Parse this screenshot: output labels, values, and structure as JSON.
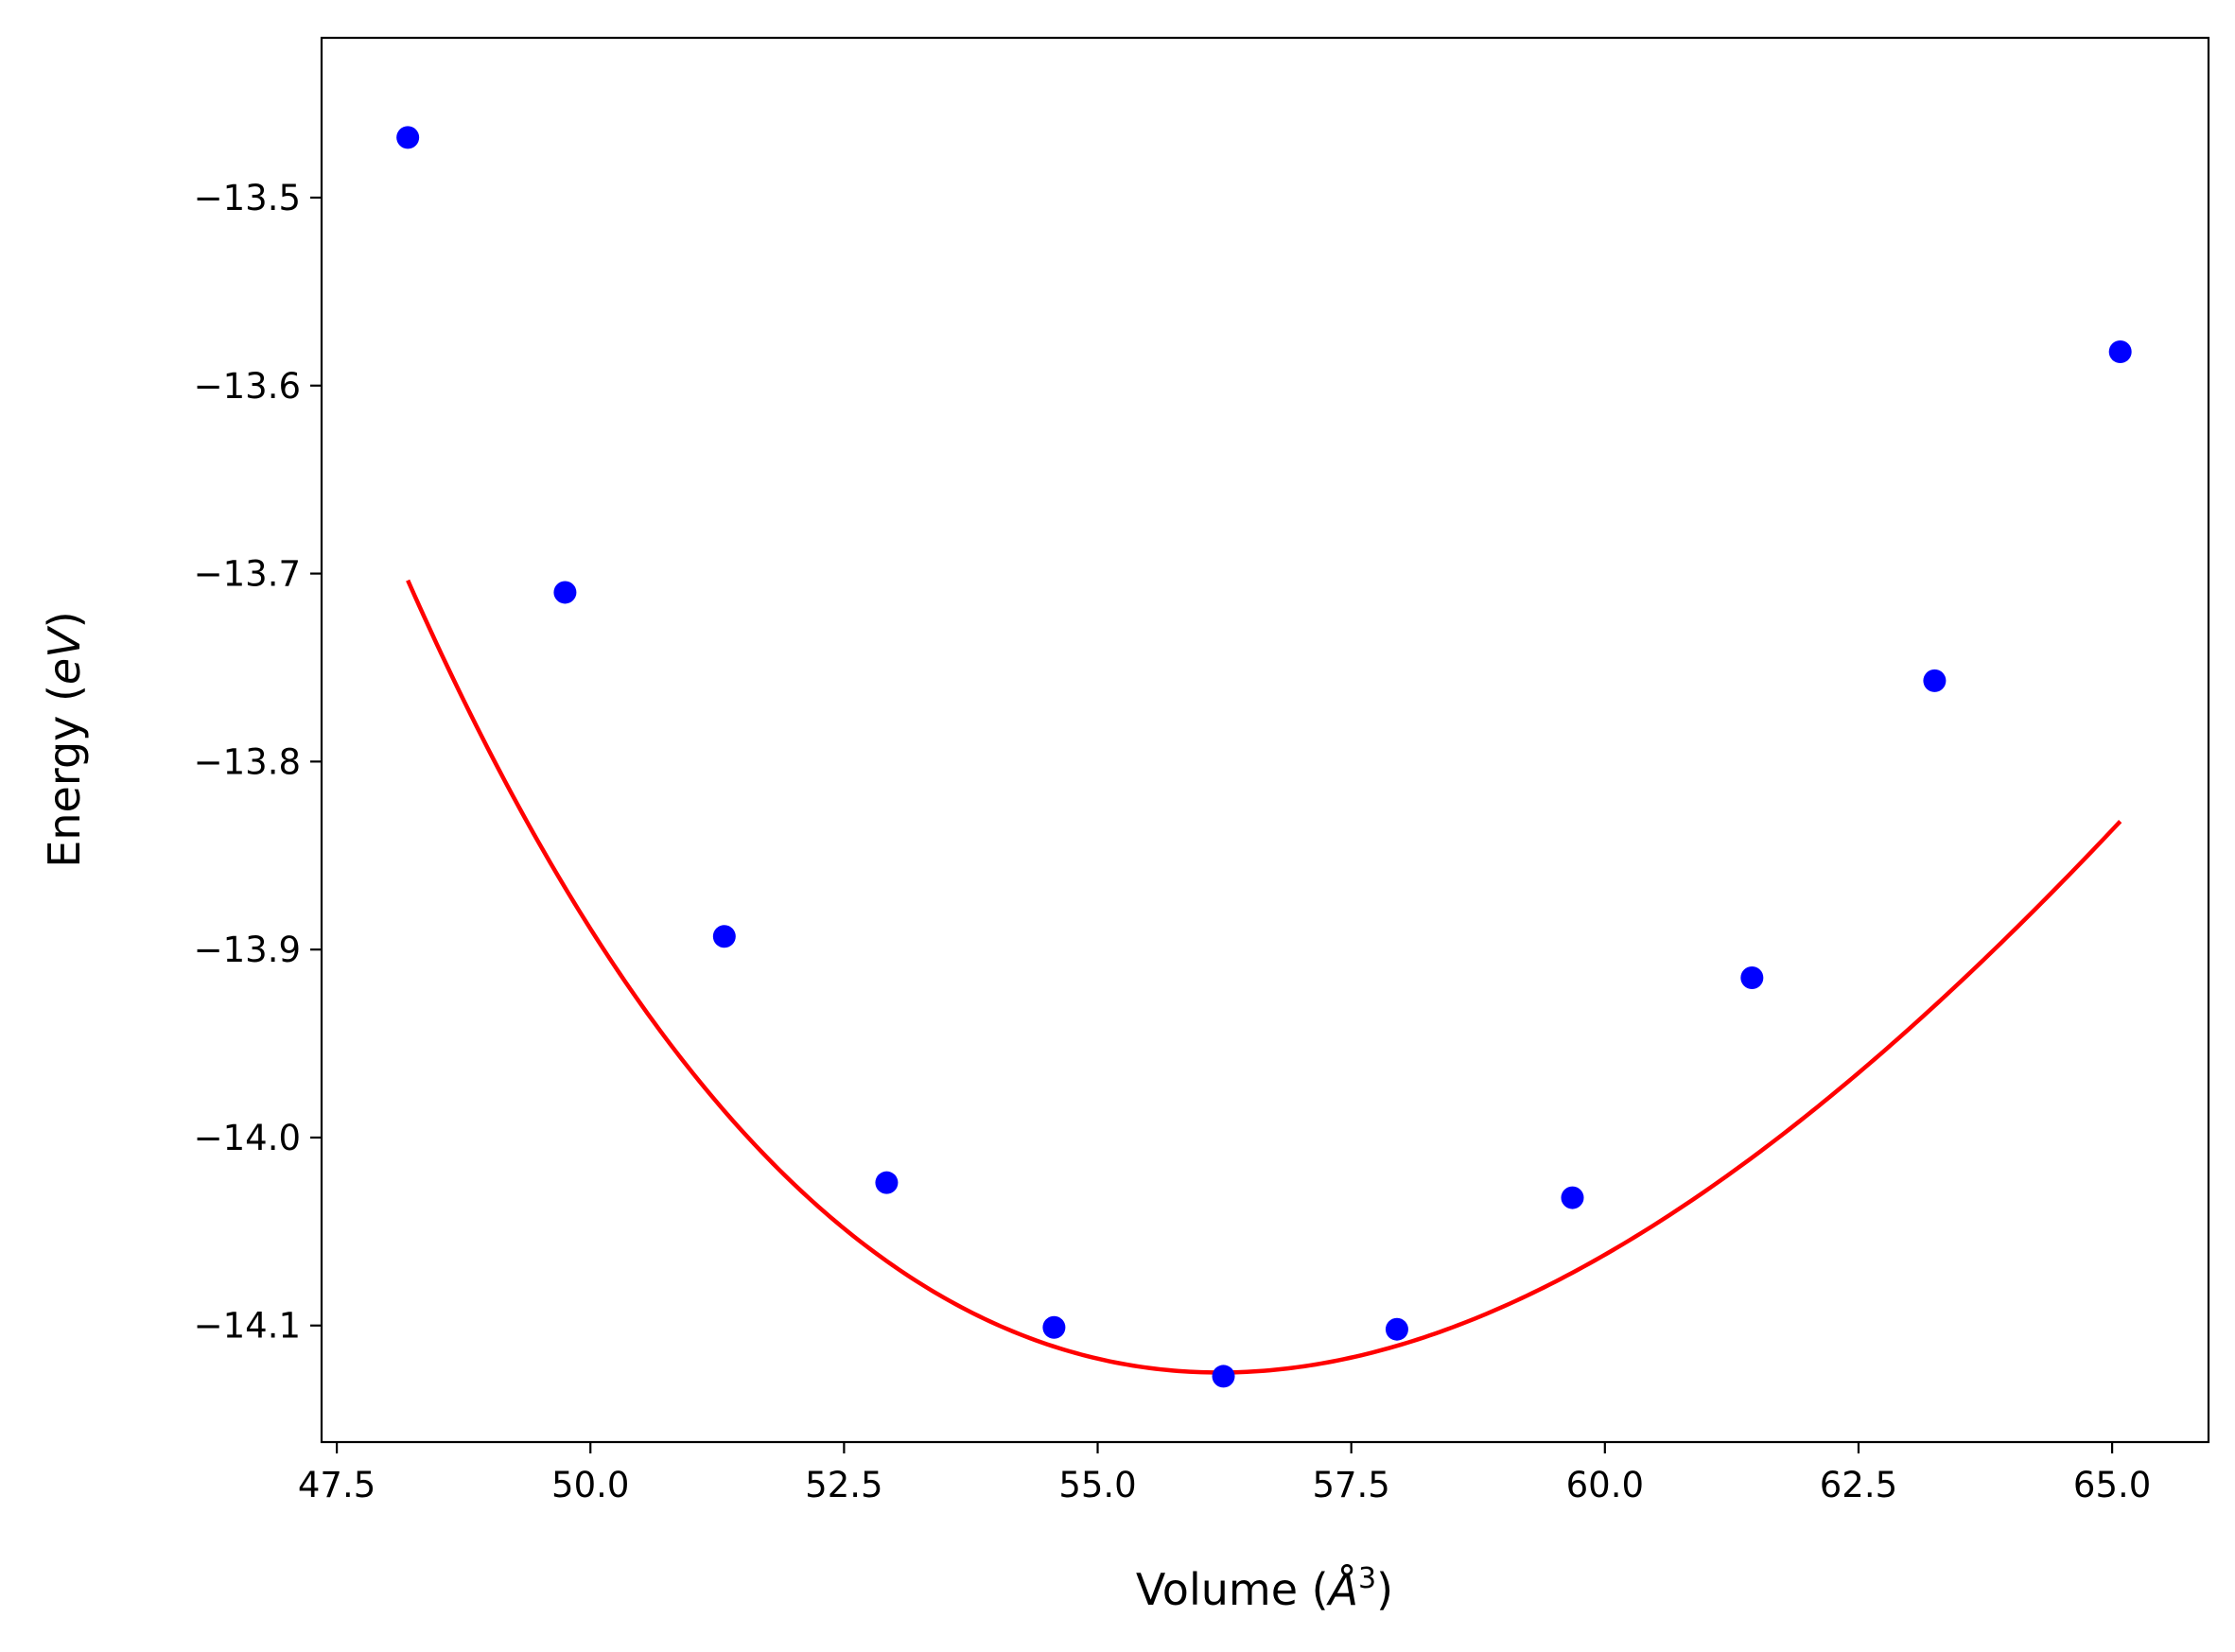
{
  "chart_data": {
    "type": "scatter",
    "title": "",
    "xlabel": "Volume (",
    "xlabel_symbol": "Å",
    "xlabel_sup": "3",
    "xlabel_close": ")",
    "ylabel": "Energy (",
    "ylabel_unit": "eV",
    "ylabel_close": ")",
    "xlim": [
      47.35,
      65.95
    ],
    "ylim": [
      -14.162,
      -13.415
    ],
    "xticks": [
      47.5,
      50.0,
      52.5,
      55.0,
      57.5,
      60.0,
      62.5,
      65.0
    ],
    "xtick_labels": [
      "47.5",
      "50.0",
      "52.5",
      "55.0",
      "57.5",
      "60.0",
      "62.5",
      "65.0"
    ],
    "yticks": [
      -13.5,
      -13.6,
      -13.7,
      -13.8,
      -13.9,
      -14.0,
      -14.1
    ],
    "ytick_labels": [
      "−13.5",
      "−13.6",
      "−13.7",
      "−13.8",
      "−13.9",
      "−14.0",
      "−14.1"
    ],
    "grid": false,
    "series": [
      {
        "kind": "scatter",
        "color": "#0000ff",
        "x": [
          48.2,
          49.75,
          51.32,
          52.92,
          54.57,
          56.24,
          57.95,
          59.68,
          61.45,
          63.25,
          65.08
        ],
        "y": [
          -13.468,
          -13.71,
          -13.893,
          -14.024,
          -14.101,
          -14.127,
          -14.102,
          -14.032,
          -13.915,
          -13.757,
          -13.582
        ]
      },
      {
        "kind": "line",
        "color": "#ff0000",
        "fit": {
          "type": "birch-murnaghan",
          "E0": -14.125,
          "V0": 56.2,
          "B0": 0.5525,
          "B0_prime": 4.71
        },
        "x_range": [
          48.2,
          65.08
        ]
      }
    ]
  }
}
